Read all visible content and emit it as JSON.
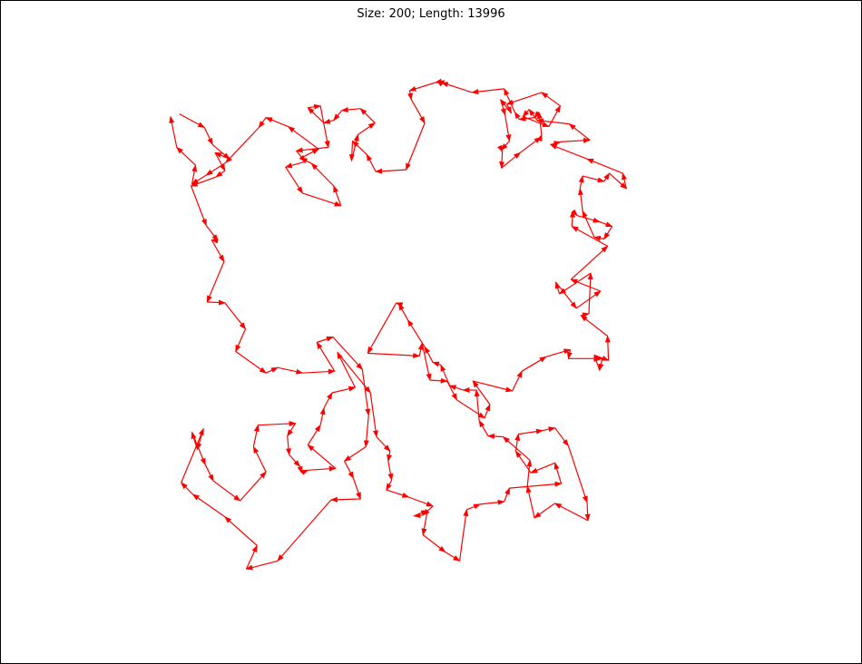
{
  "chart_data": {
    "type": "line",
    "title": "Size: 200; Length: 13996",
    "xlabel": "",
    "ylabel": "",
    "xlim": [
      0,
      590
    ],
    "ylim": [
      0,
      580
    ],
    "grid": false,
    "axes_visible": false,
    "arrows": true,
    "line_color": "#ff0000",
    "series": [
      {
        "points": [
          [
            13,
            38
          ],
          [
            41,
            53
          ],
          [
            50,
            72
          ],
          [
            69,
            88
          ],
          [
            53,
            81
          ],
          [
            64,
            101
          ],
          [
            54,
            108
          ],
          [
            26,
            118
          ],
          [
            43,
            162
          ],
          [
            56,
            179
          ],
          [
            49,
            178
          ],
          [
            63,
            202
          ],
          [
            44,
            247
          ],
          [
            64,
            248
          ],
          [
            87,
            277
          ],
          [
            76,
            302
          ],
          [
            110,
            326
          ],
          [
            123,
            320
          ],
          [
            151,
            326
          ],
          [
            187,
            324
          ],
          [
            167,
            292
          ],
          [
            185,
            286
          ],
          [
            218,
            322
          ],
          [
            225,
            373
          ],
          [
            222,
            408
          ],
          [
            198,
            424
          ],
          [
            208,
            443
          ],
          [
            216,
            466
          ],
          [
            183,
            467
          ],
          [
            123,
            535
          ],
          [
            88,
            544
          ],
          [
            100,
            518
          ],
          [
            64,
            486
          ],
          [
            28,
            461
          ],
          [
            15,
            448
          ],
          [
            40,
            388
          ],
          [
            33,
            411
          ],
          [
            27,
            392
          ],
          [
            42,
            428
          ],
          [
            51,
            446
          ],
          [
            81,
            468
          ],
          [
            110,
            436
          ],
          [
            96,
            408
          ],
          [
            101,
            384
          ],
          [
            143,
            382
          ],
          [
            134,
            396
          ],
          [
            136,
            417
          ],
          [
            148,
            430
          ],
          [
            150,
            437
          ],
          [
            157,
            434
          ],
          [
            188,
            432
          ],
          [
            157,
            406
          ],
          [
            171,
            384
          ],
          [
            175,
            365
          ],
          [
            184,
            348
          ],
          [
            210,
            342
          ],
          [
            190,
            303
          ],
          [
            227,
            348
          ],
          [
            234,
            397
          ],
          [
            249,
            413
          ],
          [
            247,
            424
          ],
          [
            251,
            445
          ],
          [
            245,
            456
          ],
          [
            270,
            464
          ],
          [
            297,
            474
          ],
          [
            286,
            484
          ],
          [
            276,
            485
          ],
          [
            291,
            479
          ],
          [
            286,
            506
          ],
          [
            311,
            525
          ],
          [
            327,
            535
          ],
          [
            335,
            478
          ],
          [
            350,
            472
          ],
          [
            377,
            469
          ],
          [
            383,
            454
          ],
          [
            441,
            449
          ],
          [
            434,
            426
          ],
          [
            407,
            437
          ],
          [
            390,
            413
          ],
          [
            393,
            394
          ],
          [
            420,
            390
          ],
          [
            434,
            387
          ],
          [
            449,
            407
          ],
          [
            470,
            470
          ],
          [
            471,
            490
          ],
          [
            434,
            471
          ],
          [
            411,
            487
          ],
          [
            403,
            452
          ],
          [
            406,
            423
          ],
          [
            376,
            397
          ],
          [
            359,
            396
          ],
          [
            349,
            379
          ],
          [
            346,
            345
          ],
          [
            331,
            345
          ],
          [
            316,
            340
          ],
          [
            306,
            317
          ],
          [
            297,
            314
          ],
          [
            288,
            297
          ],
          [
            269,
            267
          ],
          [
            259,
            249
          ],
          [
            256,
            248
          ],
          [
            224,
            304
          ],
          [
            282,
            307
          ],
          [
            285,
            293
          ],
          [
            294,
            334
          ],
          [
            313,
            335
          ],
          [
            324,
            356
          ],
          [
            355,
            376
          ],
          [
            361,
            361
          ],
          [
            342,
            335
          ],
          [
            386,
            346
          ],
          [
            397,
            324
          ],
          [
            424,
            308
          ],
          [
            451,
            300
          ],
          [
            449,
            310
          ],
          [
            487,
            310
          ],
          [
            484,
            323
          ],
          [
            478,
            306
          ],
          [
            494,
            312
          ],
          [
            493,
            285
          ],
          [
            463,
            262
          ],
          [
            472,
            260
          ],
          [
            474,
            215
          ],
          [
            439,
            238
          ],
          [
            435,
            225
          ],
          [
            458,
            254
          ],
          [
            485,
            235
          ],
          [
            452,
            222
          ],
          [
            493,
            185
          ],
          [
            453,
            163
          ],
          [
            454,
            146
          ],
          [
            459,
            151
          ],
          [
            484,
            158
          ],
          [
            498,
            163
          ],
          [
            489,
            177
          ],
          [
            478,
            175
          ],
          [
            465,
            146
          ],
          [
            462,
            121
          ],
          [
            465,
            107
          ],
          [
            489,
            113
          ],
          [
            495,
            104
          ],
          [
            514,
            121
          ],
          [
            510,
            104
          ],
          [
            470,
            88
          ],
          [
            429,
            72
          ],
          [
            440,
            69
          ],
          [
            473,
            67
          ],
          [
            450,
            49
          ],
          [
            414,
            45
          ],
          [
            405,
            33
          ],
          [
            398,
            41
          ],
          [
            427,
            52
          ],
          [
            440,
            29
          ],
          [
            419,
            14
          ],
          [
            380,
            27
          ],
          [
            385,
            37
          ],
          [
            373,
            22
          ],
          [
            378,
            39
          ],
          [
            383,
            68
          ],
          [
            374,
            78
          ],
          [
            375,
            80
          ],
          [
            374,
            98
          ],
          [
            395,
            81
          ],
          [
            418,
            64
          ],
          [
            419,
            61
          ],
          [
            416,
            36
          ],
          [
            411,
            42
          ],
          [
            394,
            44
          ],
          [
            389,
            36
          ],
          [
            377,
            10
          ],
          [
            341,
            14
          ],
          [
            307,
            3
          ],
          [
            310,
            1
          ],
          [
            300,
            3
          ],
          [
            271,
            12
          ],
          [
            273,
            22
          ],
          [
            288,
            48
          ],
          [
            267,
            100
          ],
          [
            233,
            102
          ],
          [
            223,
            83
          ],
          [
            207,
            68
          ],
          [
            206,
            90
          ],
          [
            213,
            61
          ],
          [
            232,
            48
          ],
          [
            216,
            32
          ],
          [
            195,
            34
          ],
          [
            186,
            45
          ],
          [
            175,
            48
          ],
          [
            157,
            31
          ],
          [
            171,
            29
          ],
          [
            180,
            75
          ],
          [
            144,
            79
          ],
          [
            154,
            91
          ],
          [
            132,
            97
          ],
          [
            151,
            126
          ],
          [
            194,
            140
          ],
          [
            186,
            118
          ],
          [
            161,
            93
          ],
          [
            149,
            87
          ],
          [
            169,
            77
          ],
          [
            135,
            52
          ],
          [
            110,
            42
          ],
          [
            102,
            53
          ],
          [
            65,
            92
          ],
          [
            43,
            106
          ],
          [
            27,
            116
          ],
          [
            31,
            95
          ],
          [
            10,
            75
          ],
          [
            3,
            41
          ]
        ]
      }
    ]
  }
}
